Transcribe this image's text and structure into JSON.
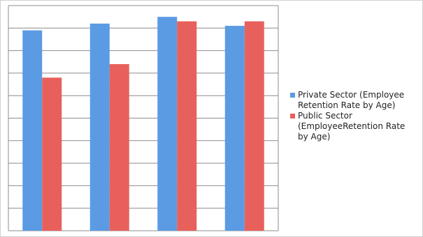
{
  "chart_data": {
    "type": "bar",
    "categories": [
      null,
      null,
      null,
      null
    ],
    "series": [
      {
        "name": "Private Sector (Employee Retention Rate by Age)",
        "color": "#5b9be3",
        "values": [
          8.9,
          9.2,
          9.5,
          9.1
        ]
      },
      {
        "name": "Public Sector (EmployeeRetention Rate by Age)",
        "color": "#e8605b",
        "values": [
          6.8,
          7.4,
          9.3,
          9.3
        ]
      }
    ],
    "ylim": [
      0,
      10
    ],
    "yticks": [
      0,
      1,
      2,
      3,
      4,
      5,
      6,
      7,
      8,
      9,
      10
    ],
    "grid": true,
    "legend": "right"
  }
}
